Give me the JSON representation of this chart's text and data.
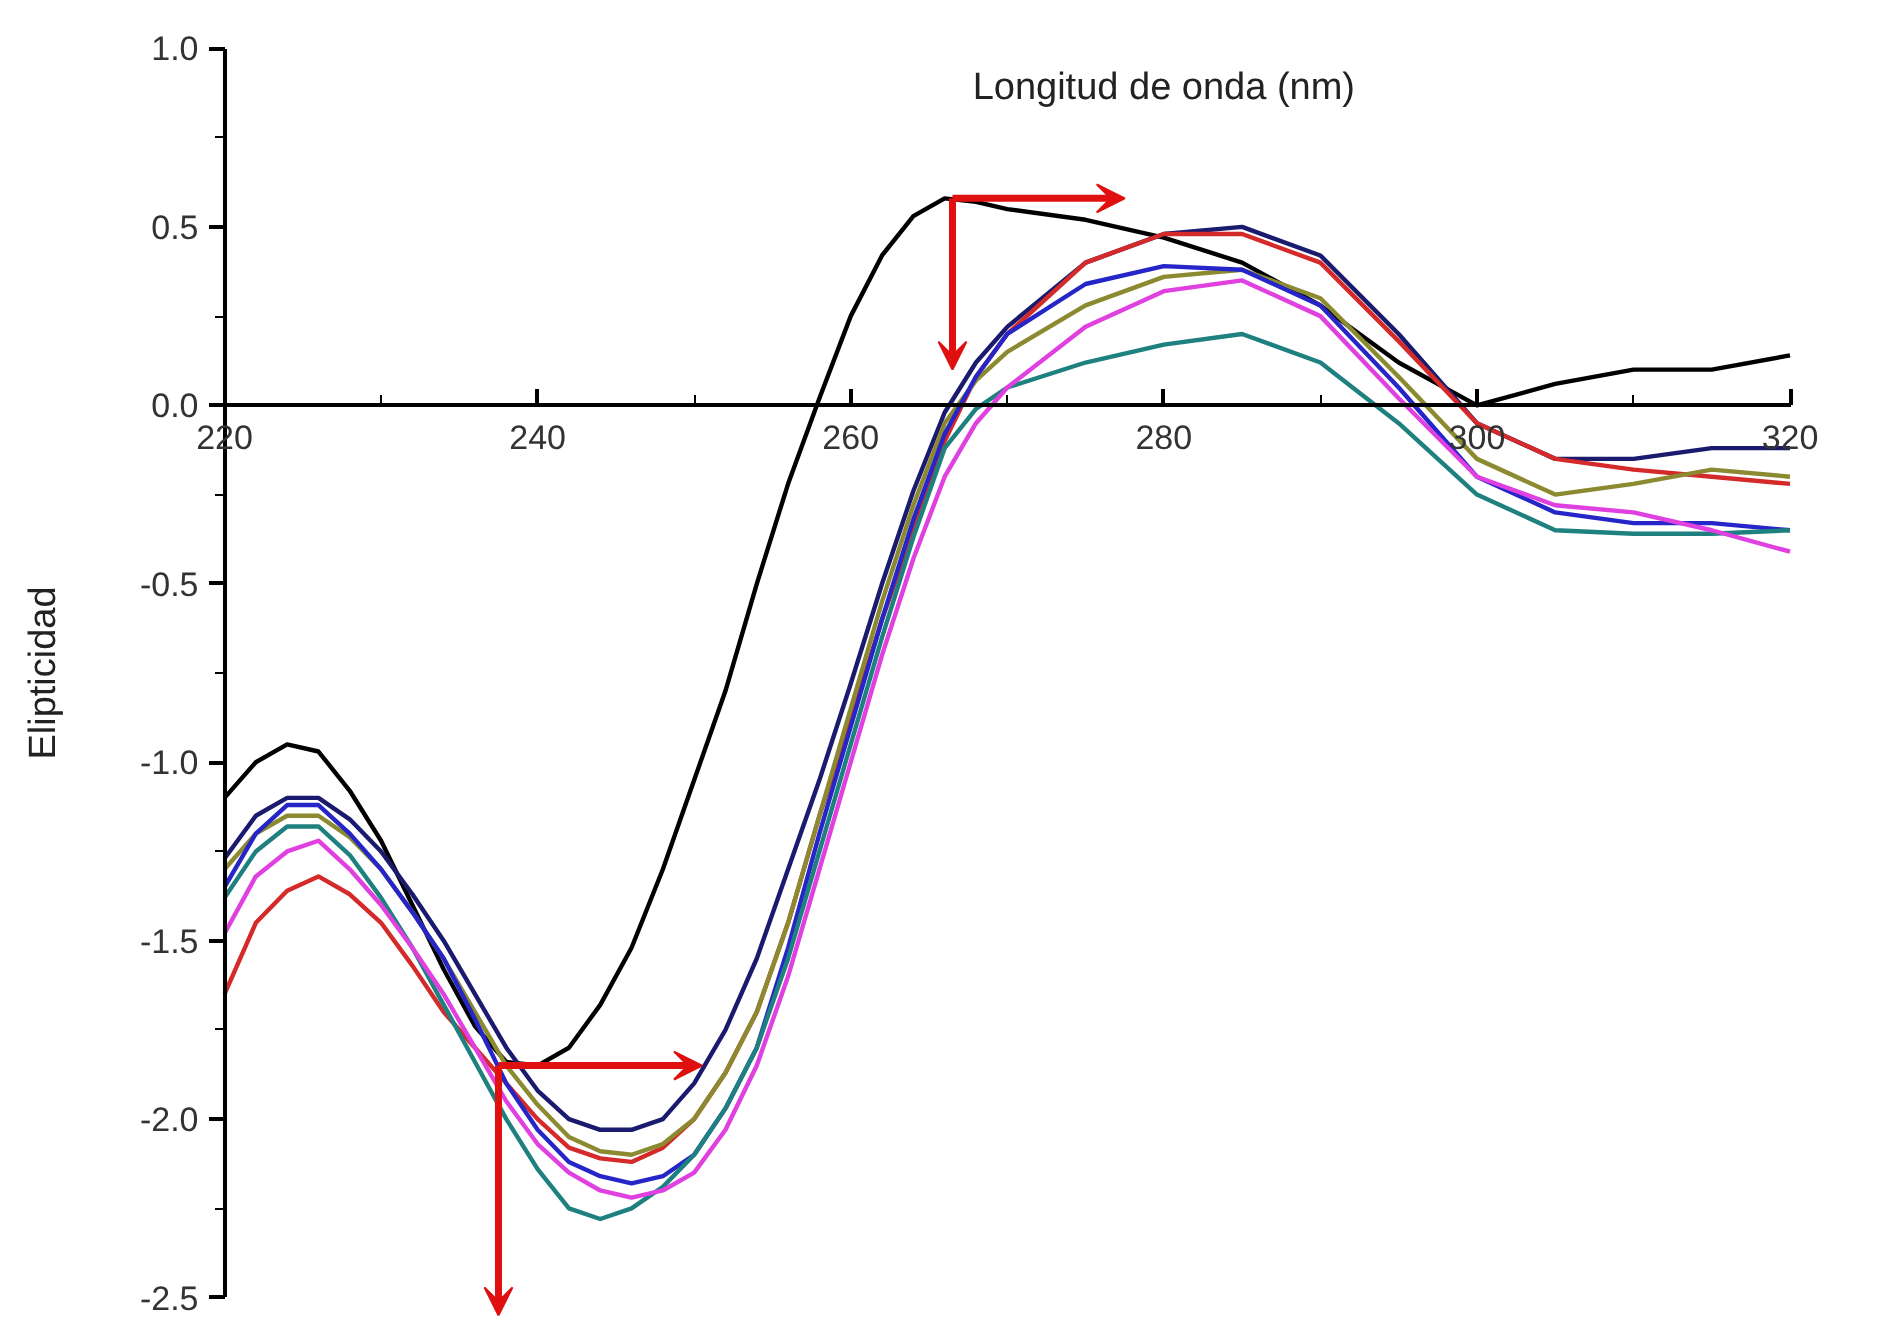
{
  "chart_data": {
    "type": "line",
    "xlabel": "Longitud de onda (nm)",
    "ylabel": "Elipticidad",
    "xlim": [
      220,
      320
    ],
    "xticks": [
      220,
      240,
      260,
      280,
      300,
      320
    ],
    "ylim": [
      -2.5,
      1.0
    ],
    "yticks": [
      -2.5,
      {
        "value": -2,
        "label": "-2.0"
      },
      -1.5,
      {
        "value": -1,
        "label": "-1.0"
      },
      -0.5,
      {
        "value": 0,
        "label": "0.0"
      },
      0.5,
      {
        "value": 1,
        "label": "1.0"
      }
    ],
    "grid": false,
    "marker": "none",
    "line_style": "solid",
    "x": [
      220,
      222,
      224,
      226,
      228,
      230,
      232,
      234,
      236,
      238,
      240,
      242,
      244,
      246,
      248,
      250,
      252,
      254,
      256,
      258,
      260,
      262,
      264,
      266,
      268,
      270,
      275,
      280,
      285,
      290,
      295,
      300,
      305,
      310,
      315,
      320
    ],
    "series": [
      {
        "color": "#000000",
        "values": [
          -1.1,
          -1.0,
          -0.95,
          -0.97,
          -1.08,
          -1.22,
          -1.4,
          -1.58,
          -1.74,
          -1.84,
          -1.85,
          -1.8,
          -1.68,
          -1.52,
          -1.3,
          -1.05,
          -0.8,
          -0.5,
          -0.22,
          0.02,
          0.25,
          0.42,
          0.53,
          0.58,
          0.57,
          0.55,
          0.52,
          0.47,
          0.4,
          0.28,
          0.12,
          0.0,
          0.06,
          0.1,
          0.1,
          0.14
        ]
      },
      {
        "color": "#1a1a6e",
        "values": [
          -1.27,
          -1.15,
          -1.1,
          -1.1,
          -1.16,
          -1.25,
          -1.37,
          -1.5,
          -1.65,
          -1.8,
          -1.92,
          -2.0,
          -2.03,
          -2.03,
          -2.0,
          -1.9,
          -1.75,
          -1.55,
          -1.3,
          -1.05,
          -0.78,
          -0.5,
          -0.24,
          -0.02,
          0.12,
          0.22,
          0.4,
          0.48,
          0.5,
          0.42,
          0.2,
          -0.05,
          -0.15,
          -0.15,
          -0.12,
          -0.12
        ]
      },
      {
        "color": "#d42a2a",
        "values": [
          -1.65,
          -1.45,
          -1.36,
          -1.32,
          -1.37,
          -1.45,
          -1.57,
          -1.7,
          -1.8,
          -1.9,
          -2.0,
          -2.08,
          -2.11,
          -2.12,
          -2.08,
          -2.0,
          -1.87,
          -1.7,
          -1.45,
          -1.15,
          -0.88,
          -0.6,
          -0.35,
          -0.1,
          0.08,
          0.2,
          0.4,
          0.48,
          0.48,
          0.4,
          0.18,
          -0.05,
          -0.15,
          -0.18,
          -0.2,
          -0.22
        ]
      },
      {
        "color": "#8c8a30",
        "values": [
          -1.3,
          -1.2,
          -1.15,
          -1.15,
          -1.21,
          -1.3,
          -1.42,
          -1.55,
          -1.7,
          -1.85,
          -1.96,
          -2.05,
          -2.09,
          -2.1,
          -2.07,
          -2.0,
          -1.87,
          -1.7,
          -1.45,
          -1.15,
          -0.85,
          -0.55,
          -0.28,
          -0.05,
          0.07,
          0.15,
          0.28,
          0.36,
          0.38,
          0.3,
          0.08,
          -0.15,
          -0.25,
          -0.22,
          -0.18,
          -0.2
        ]
      },
      {
        "color": "#2626c8",
        "values": [
          -1.35,
          -1.2,
          -1.12,
          -1.12,
          -1.2,
          -1.3,
          -1.42,
          -1.55,
          -1.72,
          -1.9,
          -2.03,
          -2.12,
          -2.16,
          -2.18,
          -2.16,
          -2.1,
          -1.97,
          -1.8,
          -1.52,
          -1.2,
          -0.9,
          -0.6,
          -0.32,
          -0.08,
          0.08,
          0.2,
          0.34,
          0.39,
          0.38,
          0.28,
          0.05,
          -0.2,
          -0.3,
          -0.33,
          -0.33,
          -0.35
        ]
      },
      {
        "color": "#1f8080",
        "values": [
          -1.38,
          -1.25,
          -1.18,
          -1.18,
          -1.26,
          -1.38,
          -1.52,
          -1.68,
          -1.84,
          -2.0,
          -2.14,
          -2.25,
          -2.28,
          -2.25,
          -2.19,
          -2.1,
          -1.97,
          -1.8,
          -1.55,
          -1.25,
          -0.95,
          -0.65,
          -0.37,
          -0.12,
          -0.01,
          0.05,
          0.12,
          0.17,
          0.2,
          0.12,
          -0.05,
          -0.25,
          -0.35,
          -0.36,
          -0.36,
          -0.35
        ]
      },
      {
        "color": "#e040e0",
        "values": [
          -1.48,
          -1.32,
          -1.25,
          -1.22,
          -1.3,
          -1.4,
          -1.52,
          -1.65,
          -1.8,
          -1.95,
          -2.07,
          -2.15,
          -2.2,
          -2.22,
          -2.2,
          -2.15,
          -2.03,
          -1.85,
          -1.6,
          -1.3,
          -1.0,
          -0.7,
          -0.43,
          -0.2,
          -0.05,
          0.05,
          0.22,
          0.32,
          0.35,
          0.25,
          0.02,
          -0.2,
          -0.28,
          -0.3,
          -0.35,
          -0.41
        ]
      }
    ]
  }
}
